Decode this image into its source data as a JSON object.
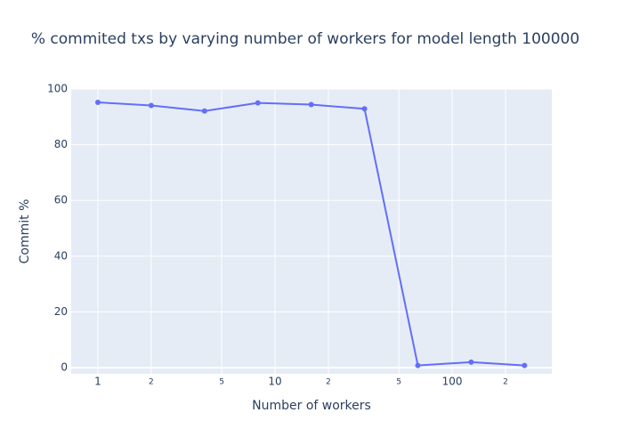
{
  "chart_data": {
    "type": "line",
    "title": "% commited txs by varying number of workers for model length 100000",
    "x_label": "Number of workers",
    "y_label": "Commit %",
    "x": [
      1,
      2,
      4,
      8,
      16,
      32,
      64,
      128,
      256
    ],
    "series": [
      {
        "name": "Commit %",
        "color": "#636efa",
        "values": [
          95.2,
          94.1,
          92.1,
          95.0,
          94.4,
          92.9,
          0.8,
          2.0,
          0.8
        ]
      }
    ],
    "xscale": "log",
    "xlim": [
      0.707,
      365
    ],
    "xticks": [
      1,
      2,
      5,
      10,
      {
        "value": 20,
        "label": "2"
      },
      {
        "value": 50,
        "label": "5"
      },
      100,
      {
        "value": 200,
        "label": "2"
      }
    ],
    "ylim": [
      -2.2,
      100
    ],
    "yticks": [
      0,
      20,
      40,
      60,
      80,
      100
    ],
    "grid": true
  }
}
